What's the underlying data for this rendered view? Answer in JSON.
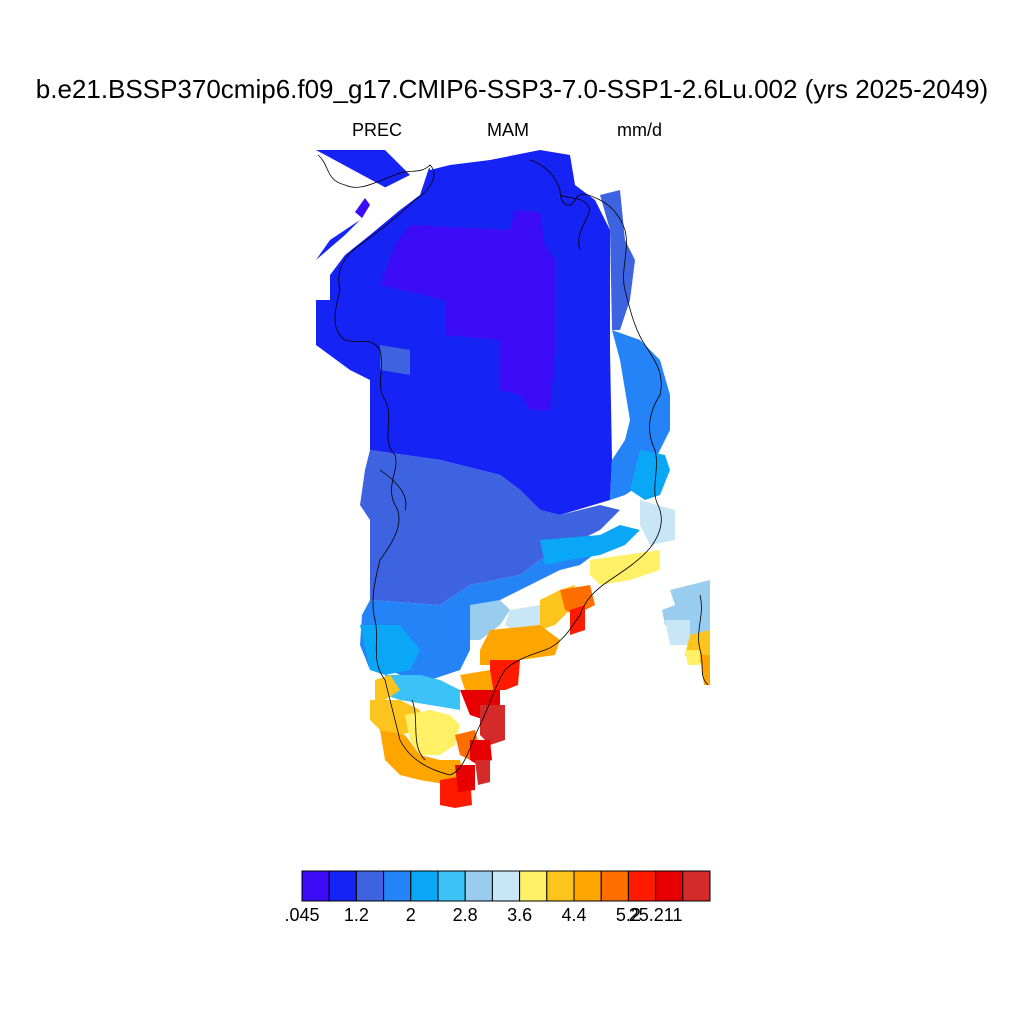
{
  "title": "b.e21.BSSP370cmip6.f09_g17.CMIP6-SSP3-7.0-SSP1-2.6Lu.002 (yrs 2025-2049)",
  "variable": "PREC",
  "season": "MAM",
  "units": "mm/d",
  "colorbar": {
    "colors": [
      "#3b0cf5",
      "#1523f5",
      "#3d63e0",
      "#2383f7",
      "#0aa7f7",
      "#3bc3f7",
      "#98cdef",
      "#c9e6f7",
      "#fff066",
      "#fec41e",
      "#ffa500",
      "#ff6f00",
      "#ff1a00",
      "#e60000",
      "#d42a2a"
    ],
    "labels": [
      ".045",
      "1.2",
      "2",
      "2.8",
      "3.6",
      "4.4",
      "5.2",
      "25.211"
    ],
    "label_boundary_index": [
      0,
      2,
      4,
      6,
      8,
      10,
      12,
      13
    ]
  }
}
